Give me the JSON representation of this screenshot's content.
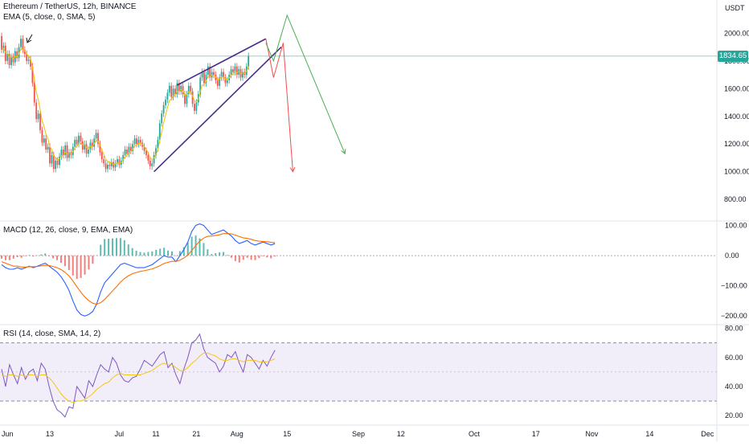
{
  "price_panel": {
    "symbol_line": "Ethereum / TetherUS, 12h, BINANCE",
    "ema_line": "EMA (5, close, 0, SMA, 5)",
    "currency": "USDT",
    "last_price": "1834.65",
    "last_price_color": "#26a69a"
  },
  "macd_panel": {
    "legend": "MACD (12, 26, close, 9, EMA, EMA)"
  },
  "rsi_panel": {
    "legend": "RSI (14, close, SMA, 14, 2)"
  },
  "time_axis": {
    "labels": [
      {
        "t": 0,
        "text": "Jun"
      },
      {
        "t": 25,
        "text": "13"
      },
      {
        "t": 61,
        "text": "Jul"
      },
      {
        "t": 80,
        "text": "11"
      },
      {
        "t": 101,
        "text": "21"
      },
      {
        "t": 122,
        "text": "Aug"
      },
      {
        "t": 148,
        "text": "15"
      },
      {
        "t": 185,
        "text": "Sep"
      },
      {
        "t": 207,
        "text": "12"
      },
      {
        "t": 245,
        "text": "Oct"
      },
      {
        "t": 277,
        "text": "17"
      },
      {
        "t": 306,
        "text": "Nov"
      },
      {
        "t": 336,
        "text": "14"
      },
      {
        "t": 366,
        "text": "Dec"
      }
    ]
  },
  "chart_data": [
    {
      "type": "candlestick",
      "title": "Ethereum / TetherUS, 12h, BINANCE",
      "y_axis_unit": "USDT",
      "y_ticks": [
        800,
        1000,
        1200,
        1400,
        1600,
        1800,
        2000
      ],
      "ylim": [
        650,
        2240
      ],
      "grid": false,
      "last_price": 1834.65,
      "up_color": "#26a69a",
      "down_color": "#ef5350",
      "candles": [
        [
          1980,
          1880
        ],
        [
          1880,
          1910
        ],
        [
          1910,
          1800
        ],
        [
          1800,
          1850
        ],
        [
          1850,
          1770
        ],
        [
          1770,
          1830
        ],
        [
          1830,
          1790
        ],
        [
          1790,
          1870
        ],
        [
          1870,
          1820
        ],
        [
          1820,
          1900
        ],
        [
          1900,
          1960
        ],
        [
          1960,
          1880
        ],
        [
          1880,
          1850
        ],
        [
          1850,
          1800
        ],
        [
          1800,
          1810
        ],
        [
          1810,
          1760
        ],
        [
          1760,
          1640
        ],
        [
          1640,
          1500
        ],
        [
          1500,
          1380
        ],
        [
          1380,
          1420
        ],
        [
          1420,
          1300
        ],
        [
          1300,
          1210
        ],
        [
          1210,
          1240
        ],
        [
          1240,
          1160
        ],
        [
          1160,
          1180
        ],
        [
          1180,
          1060
        ],
        [
          1060,
          1120
        ],
        [
          1120,
          1020
        ],
        [
          1020,
          1080
        ],
        [
          1080,
          1050
        ],
        [
          1050,
          1110
        ],
        [
          1110,
          1160
        ],
        [
          1160,
          1120
        ],
        [
          1120,
          1190
        ],
        [
          1190,
          1100
        ],
        [
          1100,
          1140
        ],
        [
          1140,
          1120
        ],
        [
          1120,
          1180
        ],
        [
          1180,
          1230
        ],
        [
          1230,
          1200
        ],
        [
          1200,
          1260
        ],
        [
          1260,
          1220
        ],
        [
          1220,
          1160
        ],
        [
          1160,
          1200
        ],
        [
          1200,
          1130
        ],
        [
          1130,
          1160
        ],
        [
          1160,
          1210
        ],
        [
          1210,
          1180
        ],
        [
          1180,
          1240
        ],
        [
          1240,
          1280
        ],
        [
          1280,
          1200
        ],
        [
          1200,
          1140
        ],
        [
          1140,
          1090
        ],
        [
          1090,
          1060
        ],
        [
          1060,
          1020
        ],
        [
          1020,
          1050
        ],
        [
          1050,
          1040
        ],
        [
          1040,
          1070
        ],
        [
          1070,
          1030
        ],
        [
          1030,
          1060
        ],
        [
          1060,
          1090
        ],
        [
          1090,
          1050
        ],
        [
          1050,
          1080
        ],
        [
          1080,
          1120
        ],
        [
          1120,
          1160
        ],
        [
          1160,
          1130
        ],
        [
          1130,
          1180
        ],
        [
          1180,
          1150
        ],
        [
          1150,
          1200
        ],
        [
          1200,
          1240
        ],
        [
          1240,
          1200
        ],
        [
          1200,
          1230
        ],
        [
          1230,
          1210
        ],
        [
          1210,
          1180
        ],
        [
          1180,
          1150
        ],
        [
          1150,
          1120
        ],
        [
          1120,
          1080
        ],
        [
          1080,
          1040
        ],
        [
          1040,
          1060
        ],
        [
          1060,
          1120
        ],
        [
          1120,
          1170
        ],
        [
          1170,
          1230
        ],
        [
          1230,
          1350
        ],
        [
          1350,
          1420
        ],
        [
          1420,
          1480
        ],
        [
          1480,
          1520
        ],
        [
          1520,
          1570
        ],
        [
          1570,
          1620
        ],
        [
          1620,
          1540
        ],
        [
          1540,
          1600
        ],
        [
          1600,
          1560
        ],
        [
          1560,
          1640
        ],
        [
          1640,
          1580
        ],
        [
          1580,
          1620
        ],
        [
          1620,
          1560
        ],
        [
          1560,
          1490
        ],
        [
          1490,
          1560
        ],
        [
          1560,
          1620
        ],
        [
          1620,
          1580
        ],
        [
          1580,
          1490
        ],
        [
          1490,
          1440
        ],
        [
          1440,
          1500
        ],
        [
          1500,
          1560
        ],
        [
          1560,
          1680
        ],
        [
          1680,
          1720
        ],
        [
          1720,
          1640
        ],
        [
          1640,
          1700
        ],
        [
          1700,
          1760
        ],
        [
          1760,
          1680
        ],
        [
          1680,
          1720
        ],
        [
          1720,
          1700
        ],
        [
          1700,
          1660
        ],
        [
          1660,
          1620
        ],
        [
          1620,
          1680
        ],
        [
          1680,
          1720
        ],
        [
          1720,
          1680
        ],
        [
          1680,
          1640
        ],
        [
          1640,
          1660
        ],
        [
          1660,
          1700
        ],
        [
          1700,
          1740
        ],
        [
          1740,
          1720
        ],
        [
          1720,
          1760
        ],
        [
          1760,
          1700
        ],
        [
          1700,
          1740
        ],
        [
          1740,
          1680
        ],
        [
          1680,
          1720
        ],
        [
          1720,
          1700
        ],
        [
          1700,
          1760
        ],
        [
          1760,
          1835
        ]
      ],
      "ema_color": "#f0c000",
      "trendlines": [
        {
          "name": "wedge-upper",
          "from": [
            91,
            1625
          ],
          "to": [
            137,
            1960
          ],
          "color": "#4a2d8a"
        },
        {
          "name": "wedge-lower",
          "from": [
            79,
            1000
          ],
          "to": [
            145,
            1900
          ],
          "color": "#4a2d8a"
        },
        {
          "name": "bearish-path",
          "points": [
            [
              137,
              1960
            ],
            [
              141,
              1680
            ],
            [
              146,
              1930
            ],
            [
              151,
              1000
            ]
          ],
          "color": "#f24d4d"
        },
        {
          "name": "alt-path",
          "points": [
            [
              137,
              1930
            ],
            [
              141,
              1800
            ],
            [
              148,
              2130
            ],
            [
              178,
              1130
            ]
          ],
          "color": "#4caf50"
        },
        {
          "name": "price-line",
          "points": [
            [
              0,
              1835
            ],
            [
              375,
              1835
            ]
          ],
          "color": "#26a69a"
        }
      ]
    },
    {
      "type": "line",
      "title": "MACD (12, 26, close, 9, EMA, EMA)",
      "y_ticks": [
        100,
        0,
        -100,
        -200
      ],
      "ylim": [
        -226,
        112
      ],
      "series": [
        {
          "color": "#2962ff",
          "values": [
            -30,
            -40,
            -45,
            -45,
            -40,
            -45,
            -40,
            -35,
            -40,
            -35,
            -30,
            -25,
            -35,
            -45,
            -55,
            -70,
            -90,
            -115,
            -150,
            -180,
            -195,
            -200,
            -195,
            -185,
            -160,
            -120,
            -90,
            -75,
            -60,
            -45,
            -30,
            -25,
            -30,
            -35,
            -40,
            -40,
            -40,
            -35,
            -30,
            -20,
            -10,
            0,
            -5,
            -5,
            -20,
            0,
            20,
            45,
            80,
            100,
            105,
            100,
            85,
            70,
            75,
            80,
            85,
            75,
            65,
            50,
            40,
            45,
            50,
            40,
            35,
            40,
            45,
            40,
            35,
            40
          ]
        },
        {
          "color": "#ff6d00",
          "values": [
            -20,
            -25,
            -30,
            -35,
            -35,
            -38,
            -38,
            -37,
            -37,
            -36,
            -34,
            -32,
            -33,
            -36,
            -40,
            -46,
            -55,
            -67,
            -84,
            -103,
            -121,
            -137,
            -149,
            -158,
            -161,
            -156,
            -145,
            -131,
            -117,
            -103,
            -88,
            -76,
            -67,
            -60,
            -56,
            -52,
            -50,
            -47,
            -44,
            -39,
            -33,
            -26,
            -22,
            -19,
            -19,
            -15,
            -8,
            2,
            17,
            33,
            48,
            58,
            64,
            65,
            67,
            69,
            73,
            73,
            72,
            68,
            63,
            59,
            57,
            54,
            50,
            48,
            47,
            46,
            44,
            43
          ]
        }
      ],
      "histogram": [
        -10,
        -15,
        -15,
        -10,
        -5,
        -7,
        -2,
        2,
        -3,
        1,
        4,
        7,
        -2,
        -9,
        -15,
        -24,
        -35,
        -48,
        -66,
        -77,
        -74,
        -63,
        -46,
        -27,
        1,
        36,
        55,
        56,
        57,
        58,
        58,
        51,
        37,
        25,
        16,
        12,
        10,
        12,
        14,
        19,
        23,
        26,
        17,
        14,
        -1,
        15,
        28,
        43,
        63,
        67,
        57,
        42,
        21,
        5,
        8,
        11,
        12,
        2,
        -7,
        -18,
        -23,
        -14,
        -7,
        -14,
        -15,
        -8,
        -2,
        -6,
        -9,
        -3
      ],
      "hist_colors": {
        "up": "#26a69a",
        "down": "#ef5350"
      }
    },
    {
      "type": "line",
      "title": "RSI (14, close, SMA, 14, 2)",
      "y_ticks": [
        80,
        60,
        40,
        20
      ],
      "ylim": [
        14,
        82
      ],
      "band": [
        30,
        70
      ],
      "midline": 50,
      "series": [
        {
          "color": "#7e57c2",
          "values": [
            52,
            40,
            55,
            48,
            42,
            53,
            45,
            50,
            52,
            44,
            56,
            52,
            40,
            30,
            24,
            22,
            19,
            26,
            25,
            40,
            36,
            32,
            44,
            40,
            48,
            55,
            52,
            50,
            60,
            56,
            48,
            44,
            43,
            46,
            47,
            52,
            58,
            56,
            54,
            58,
            62,
            64,
            53,
            56,
            48,
            42,
            52,
            60,
            70,
            72,
            76,
            66,
            60,
            58,
            56,
            50,
            54,
            62,
            60,
            64,
            56,
            50,
            62,
            60,
            56,
            52,
            58,
            54,
            60,
            65
          ]
        },
        {
          "color": "#f5c518",
          "values": [
            48,
            47,
            48,
            48,
            47,
            48,
            47,
            48,
            48,
            47,
            48,
            48,
            46,
            43,
            39,
            35,
            32,
            30,
            29,
            30,
            30,
            31,
            33,
            35,
            38,
            40,
            42,
            43,
            46,
            48,
            49,
            48,
            48,
            48,
            48,
            48,
            49,
            50,
            51,
            53,
            55,
            56,
            55,
            55,
            53,
            51,
            51,
            53,
            56,
            58,
            61,
            63,
            63,
            62,
            61,
            59,
            58,
            58,
            59,
            59,
            58,
            57,
            58,
            58,
            58,
            57,
            57,
            57,
            58,
            59
          ]
        }
      ]
    }
  ]
}
